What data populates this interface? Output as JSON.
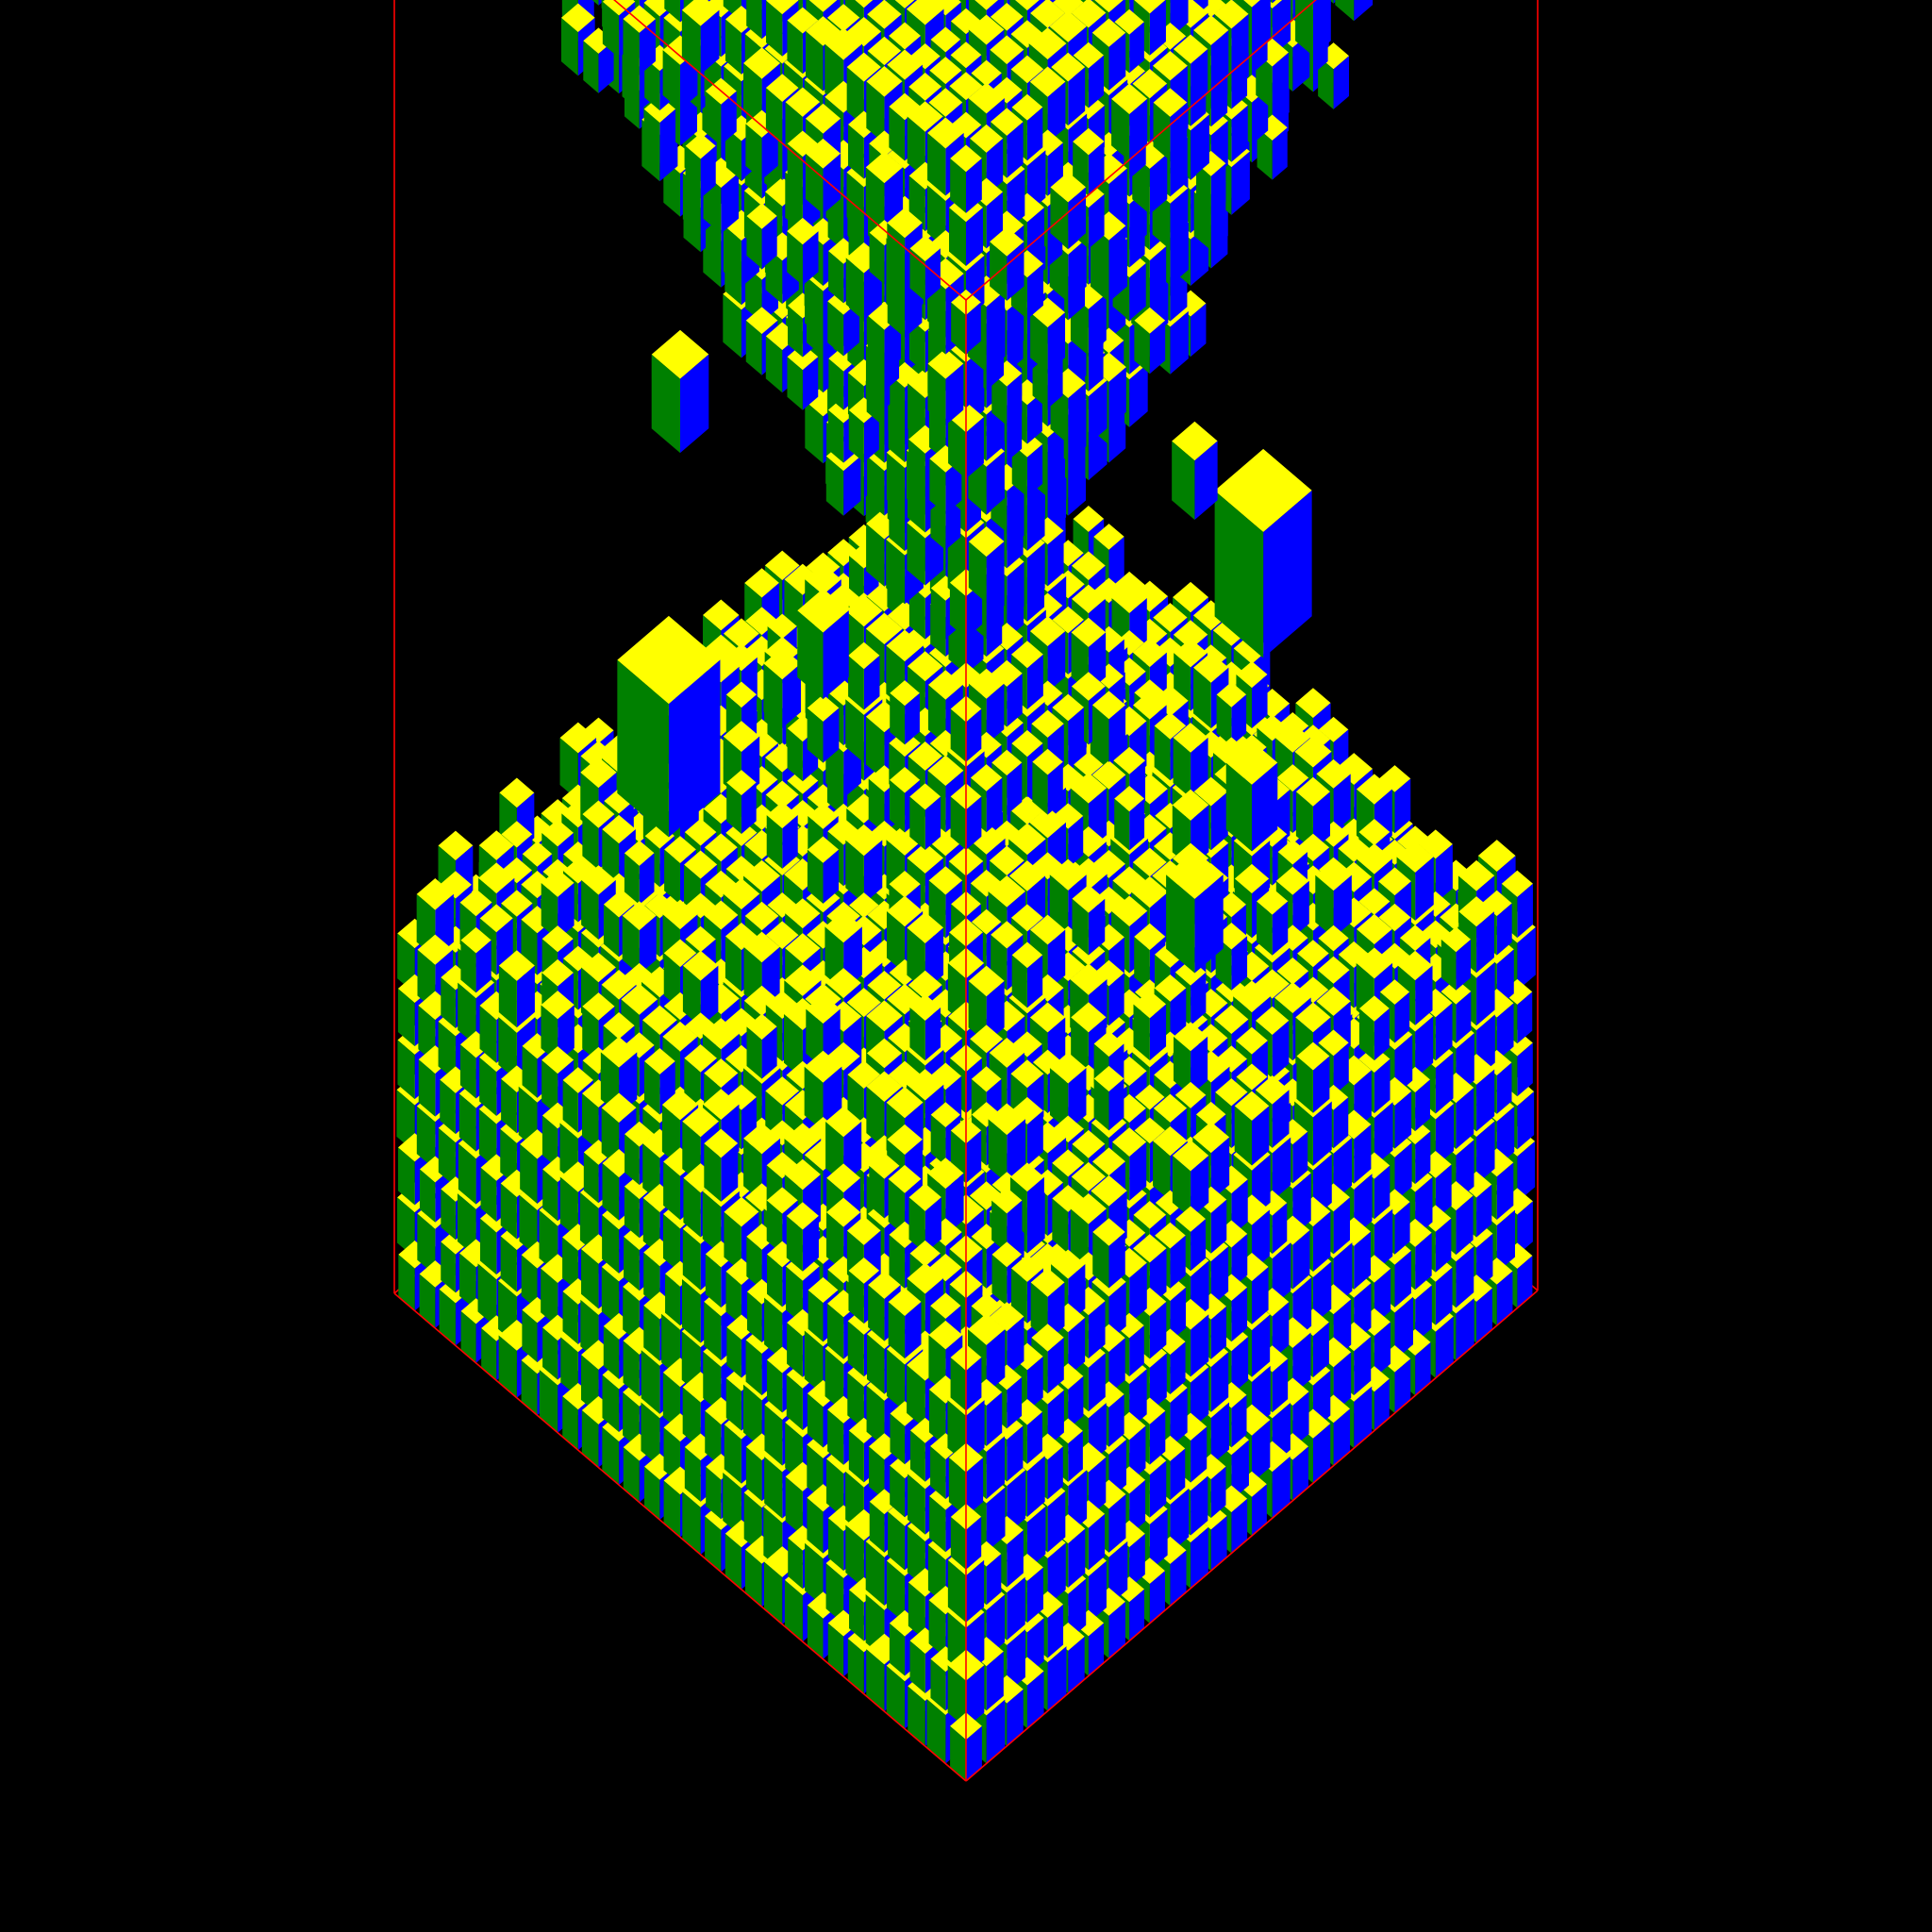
{
  "scene": {
    "background_color": "#000000",
    "bounding_box_color": "#ff0000",
    "cube_face_colors": {
      "top": "#ffff00",
      "left": "#008000",
      "right": "#0000ff"
    },
    "description_free": true
  }
}
